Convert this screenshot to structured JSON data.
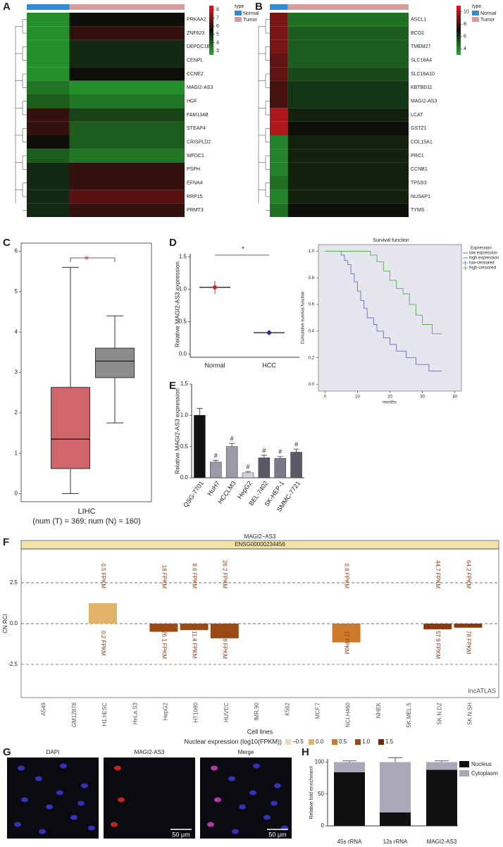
{
  "panels": [
    "A",
    "B",
    "C",
    "D",
    "E",
    "F",
    "G",
    "H"
  ],
  "chart_data": [
    {
      "type": "heatmap",
      "legend_title": "type",
      "groups": [
        {
          "name": "Normal",
          "color": "#2e8bd6"
        },
        {
          "name": "Tumor",
          "color": "#d79c9c"
        }
      ],
      "rows": [
        "PRKAA2",
        "ZNF623",
        "DEPDC1B",
        "CENPL",
        "CCNE2",
        "MAGI2-AS3",
        "HGF",
        "FAM134B",
        "STEAP4",
        "CRISPLD2",
        "WFDC1",
        "PSPH",
        "EFNA4",
        "RRP15",
        "PRMT3"
      ],
      "values": [
        [
          3,
          5.5
        ],
        [
          3,
          6
        ],
        [
          3,
          5
        ],
        [
          3,
          5
        ],
        [
          3,
          5.5
        ],
        [
          3.5,
          3
        ],
        [
          4,
          3.5
        ],
        [
          6,
          4.5
        ],
        [
          6,
          4
        ],
        [
          5.5,
          4
        ],
        [
          4,
          3.5
        ],
        [
          5,
          6
        ],
        [
          5,
          6
        ],
        [
          5,
          6.5
        ],
        [
          5,
          6
        ]
      ],
      "zlim": [
        2.5,
        8.5
      ],
      "zticks": [
        3,
        4,
        5,
        6,
        7,
        8
      ]
    },
    {
      "type": "heatmap",
      "legend_title": "type",
      "groups": [
        {
          "name": "Normal",
          "color": "#2e8bd6"
        },
        {
          "name": "Tumor",
          "color": "#d79c9c"
        }
      ],
      "rows": [
        "ASCL1",
        "BCO2",
        "TMEM27",
        "SLC16A4",
        "SLC16A10",
        "KBTBD11",
        "MAGI2-AS3",
        "LCAT",
        "GSTZ1",
        "COL15A1",
        "PRC1",
        "CCNB1",
        "TP53I3",
        "NUSAP1",
        "TYMS"
      ],
      "values": [
        [
          9,
          4.5
        ],
        [
          9,
          5
        ],
        [
          9,
          5
        ],
        [
          8.5,
          5
        ],
        [
          8.5,
          5.5
        ],
        [
          8,
          6
        ],
        [
          8,
          6
        ],
        [
          10,
          6.5
        ],
        [
          10,
          7
        ],
        [
          4,
          6.5
        ],
        [
          4,
          6.5
        ],
        [
          4,
          6.5
        ],
        [
          4.5,
          6.5
        ],
        [
          4,
          6.5
        ],
        [
          4.5,
          7
        ]
      ],
      "zlim": [
        3,
        11
      ],
      "zticks": [
        4,
        6,
        8,
        10
      ]
    },
    {
      "type": "box",
      "xlabel": "LIHC",
      "note": "(num (T) = 369; num (N) = 160)",
      "annotation": "*",
      "ylim": [
        -0.2,
        6.2
      ],
      "yticks": [
        0,
        1,
        2,
        3,
        4,
        5,
        6
      ],
      "series": [
        {
          "color": "#d0666a",
          "whislo": 0,
          "q1": 0.62,
          "med": 1.35,
          "q3": 2.63,
          "whishi": 5.6
        },
        {
          "color": "#8c8c8c",
          "whislo": 1.75,
          "q1": 2.87,
          "med": 3.28,
          "q3": 3.6,
          "whishi": 4.4
        }
      ]
    },
    {
      "type": "dot",
      "ylabel": "Relative MAGI2-AS3 expression",
      "annotation": "*",
      "categories": [
        "Normal",
        "HCC"
      ],
      "values": [
        1.03,
        0.33
      ],
      "errors": [
        0.1,
        0.04
      ],
      "colors": [
        "#c0282d",
        "#2d2d8c"
      ],
      "ylim": [
        -0.05,
        1.55
      ],
      "yticks": [
        {
          "value": 0,
          "label": "0.0"
        },
        0.5,
        {
          "value": 1,
          "label": "1.0"
        },
        1.5
      ]
    },
    {
      "type": "line",
      "title": "Survival function",
      "xlabel": "months",
      "ylabel": "Cumulative survival function",
      "legend_title": "Expression",
      "censored_labels": [
        "low-censored",
        "high-censored"
      ],
      "xlim": [
        -2,
        42
      ],
      "xticks": [
        0,
        10,
        20,
        30,
        40
      ],
      "ylim": [
        -0.05,
        1.05
      ],
      "yticks": [
        {
          "value": 0,
          "label": "0.0"
        },
        0.2,
        0.4,
        0.6,
        0.8,
        {
          "value": 1,
          "label": "1.0"
        }
      ],
      "series": [
        {
          "name": "low expression",
          "color": "#6a6acb",
          "x": [
            0,
            5,
            5,
            6,
            6,
            7,
            7,
            8,
            8,
            9,
            9,
            10,
            10,
            11,
            11,
            12,
            12,
            13,
            13,
            15,
            15,
            16,
            16,
            18,
            18,
            20,
            20,
            22,
            22,
            25,
            25,
            28,
            28,
            32,
            32,
            36
          ],
          "values": [
            1,
            1,
            0.97,
            0.97,
            0.93,
            0.93,
            0.9,
            0.9,
            0.83,
            0.83,
            0.77,
            0.77,
            0.7,
            0.7,
            0.63,
            0.63,
            0.57,
            0.57,
            0.5,
            0.5,
            0.45,
            0.45,
            0.4,
            0.4,
            0.35,
            0.35,
            0.3,
            0.3,
            0.25,
            0.25,
            0.2,
            0.2,
            0.15,
            0.15,
            0.1,
            0.1
          ]
        },
        {
          "name": "high expression",
          "color": "#5aaa50",
          "x": [
            0,
            14,
            14,
            16,
            16,
            18,
            18,
            20,
            20,
            22,
            22,
            24,
            24,
            26,
            26,
            28,
            28,
            30,
            30,
            33,
            33,
            36
          ],
          "values": [
            1,
            1,
            0.97,
            0.97,
            0.92,
            0.92,
            0.85,
            0.85,
            0.78,
            0.78,
            0.72,
            0.72,
            0.68,
            0.68,
            0.6,
            0.6,
            0.52,
            0.52,
            0.45,
            0.45,
            0.38,
            0.38
          ]
        }
      ]
    },
    {
      "type": "bar",
      "ylabel": "Relative MAGI2-AS3 expression",
      "categories": [
        "QSG-7701",
        "HuH7",
        "HCCLM3",
        "HepG2",
        "BEL-7402",
        "SK-HEP-1",
        "SMMC-7721"
      ],
      "values": [
        1.0,
        0.25,
        0.5,
        0.08,
        0.32,
        0.31,
        0.41
      ],
      "errors": [
        0.11,
        0.03,
        0.05,
        0.02,
        0.04,
        0.03,
        0.05
      ],
      "colors": [
        "#111111",
        "#9a9aa8",
        "#9a9aa8",
        "#d4d4dc",
        "#5a5a66",
        "#7a7a88",
        "#5a5a66"
      ],
      "annotations": [
        null,
        "#",
        "#",
        "#",
        "#",
        "#",
        "#"
      ],
      "ylim": [
        0,
        1.5
      ],
      "yticks": [
        {
          "value": 0,
          "label": "0.0"
        },
        0.5,
        {
          "value": 1,
          "label": "1.0"
        },
        1.5
      ]
    },
    {
      "type": "rci",
      "title": "MAGI2−AS3",
      "subtitle": "ENSG00000234456",
      "ylabel": "CN RCI",
      "xlabel": "Cell lines",
      "source": "lncATLAS",
      "legend_title": "Nuclear expression (log10(FPKM))",
      "legend": [
        {
          "name": "−0.5",
          "color": "#f0d9b0"
        },
        {
          "name": "0.0",
          "color": "#e0b26a"
        },
        {
          "name": "0.5",
          "color": "#cc7a2a"
        },
        {
          "name": "1.0",
          "color": "#9a4a12"
        },
        {
          "name": "1.5",
          "color": "#6e2c06"
        }
      ],
      "categories": [
        "A549",
        "GM12878",
        "H1.hESC",
        "HeLa.S3",
        "HepG2",
        "HT1080",
        "HUVEC",
        "IMR.90",
        "K562",
        "MCF.7",
        "NCI.H460",
        "NHEK",
        "SK.MEL.5",
        "SK.N.DZ",
        "SK.N.SH"
      ],
      "values": [
        null,
        null,
        1.25,
        null,
        -0.5,
        -0.4,
        -0.9,
        null,
        null,
        null,
        -1.15,
        null,
        null,
        -0.35,
        -0.25
      ],
      "colors": [
        null,
        null,
        "#e0b26a",
        null,
        "#9a4a12",
        "#9a4a12",
        "#9a4a12",
        null,
        null,
        null,
        "#cc7a2a",
        null,
        null,
        "#8b3a10",
        "#8b3a10"
      ],
      "top_labels": [
        null,
        null,
        "0.5 FPKM",
        null,
        "18 FPKM",
        "8.6 FPKM",
        "26.2 FPKM",
        null,
        null,
        null,
        "0.8 FPKM",
        null,
        null,
        "44.7 FPKM",
        "64.2 FPKM"
      ],
      "bottom_labels": [
        null,
        null,
        "0.2 FPKM",
        null,
        "26.1 FPKM",
        "11.4 FPKM",
        "32.8 FPKM",
        null,
        null,
        null,
        "17 FPKM",
        null,
        null,
        "57.9 FPKM",
        "78 FPKM"
      ],
      "ylim": [
        -4.53,
        4.57
      ],
      "yticks": [
        2.5,
        {
          "value": 0,
          "label": "0.0"
        },
        -2.5
      ]
    },
    {
      "type": "stacked_bar",
      "ylabel": "Relative fold enrichment",
      "categories": [
        "45s rRNA",
        "12s rRNA",
        "MAGI2-AS3"
      ],
      "series": [
        {
          "name": "Nucleus",
          "color": "#111111",
          "values": [
            84,
            21,
            88
          ],
          "errors": [
            8,
            1,
            6
          ]
        },
        {
          "name": "Cytoplasm",
          "color": "#a8a8b8",
          "values": [
            16,
            79,
            12
          ],
          "errors": [
            2,
            7,
            2
          ]
        }
      ],
      "ylim": [
        0,
        105
      ],
      "yticks": [
        0,
        50,
        100
      ]
    }
  ],
  "images": {
    "labels": [
      "DAPI",
      "MAGI2-AS3",
      "Merge"
    ],
    "scale_bar": "50 μm"
  }
}
